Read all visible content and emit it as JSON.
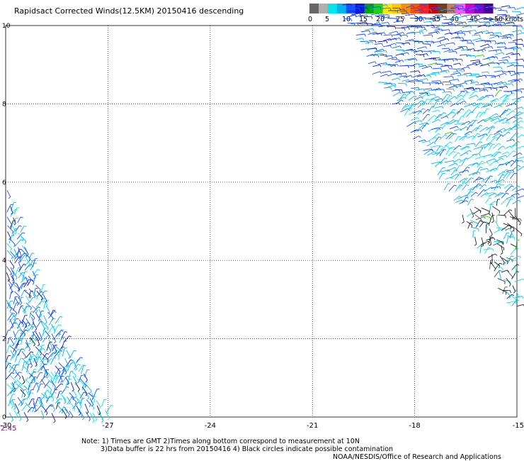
{
  "title": "Rapidsact Corrected Winds(12.5KM) 20150416 descending",
  "legend": {
    "colors": [
      "#666666",
      "#b0b0b0",
      "#00e5ee",
      "#00b4f0",
      "#1650ff",
      "#0a1ad8",
      "#00a800",
      "#28d200",
      "#ffe600",
      "#ffc800",
      "#ff8a00",
      "#ff5000",
      "#ff1e1e",
      "#d20000",
      "#7a3a14",
      "#c08060",
      "#ff55ff",
      "#d200d2",
      "#8200c8",
      "#500096"
    ],
    "labels": [
      "0",
      "5",
      "10",
      "15",
      "20",
      "25",
      "30",
      "35",
      "40",
      "45",
      ">50 knots"
    ]
  },
  "time_label": "2:45",
  "notes": {
    "line1": "Note: 1) Times are GMT 2)Times along bottom correspond to measurement at 10N",
    "line2": "3)Data buffer is 22 hrs from 20150416 4) Black circles indicate possible contamination",
    "line3": "NOAA/NESDIS/Office of Research and Applications"
  },
  "chart_data": {
    "type": "wind barb map",
    "x_ticks": [
      "-30",
      "-27",
      "-24",
      "-21",
      "-18",
      "-15"
    ],
    "y_ticks": [
      "0",
      "2",
      "4",
      "6",
      "8",
      "10"
    ],
    "xlim": [
      -30,
      -15
    ],
    "ylim": [
      0,
      10
    ],
    "grid": true,
    "swaths": [
      {
        "name": "left",
        "polygon": [
          [
            -30,
            6
          ],
          [
            -29.7,
            5.1
          ],
          [
            -29.35,
            4.2
          ],
          [
            -28.85,
            3.0
          ],
          [
            -28.35,
            2.0
          ],
          [
            -27.7,
            1.1
          ],
          [
            -27.0,
            0.1
          ],
          [
            -30,
            0.1
          ]
        ]
      },
      {
        "name": "right",
        "polygon": [
          [
            -20.35,
            10.6
          ],
          [
            -15,
            10.6
          ],
          [
            -15,
            2.6
          ],
          [
            -15.3,
            2.8
          ],
          [
            -15.9,
            3.8
          ],
          [
            -16.6,
            5.0
          ],
          [
            -17.4,
            6.2
          ],
          [
            -18.3,
            7.4
          ],
          [
            -19.3,
            8.8
          ]
        ]
      }
    ]
  }
}
